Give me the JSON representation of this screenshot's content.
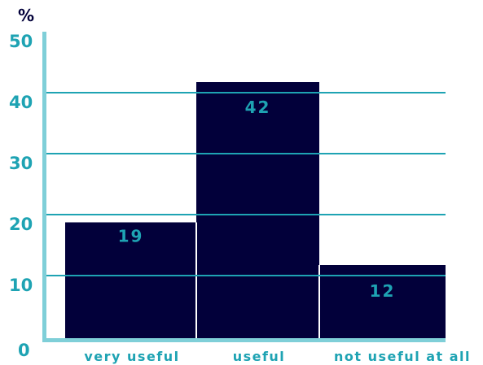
{
  "chart_data": {
    "type": "bar",
    "categories": [
      "very useful",
      "useful",
      "not useful at all"
    ],
    "values": [
      19,
      42,
      12
    ],
    "data_labels": [
      "19",
      "42",
      "12"
    ],
    "ylabel": "%",
    "ylim": [
      0,
      50
    ],
    "yticks": [
      "0",
      "10",
      "20",
      "30",
      "40",
      "50"
    ],
    "grid": true,
    "colors": {
      "bar": "#02003a",
      "grid": "#1ea3b3",
      "axis": "#7fcfd8",
      "text": "#1ea3b3",
      "unit_text": "#02003a",
      "bar_separator": "#ffffff"
    }
  }
}
